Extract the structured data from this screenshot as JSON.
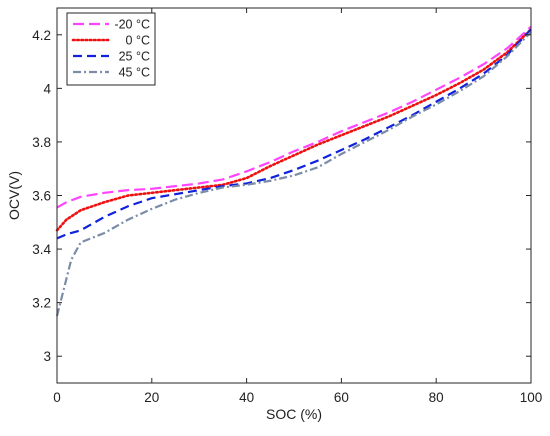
{
  "chart_data": {
    "type": "line",
    "xlabel": "SOC (%)",
    "ylabel": "OCV(V)",
    "xlim": [
      0,
      100
    ],
    "ylim": [
      2.9,
      4.3
    ],
    "xticks": [
      0,
      20,
      40,
      60,
      80,
      100
    ],
    "yticks": [
      3,
      3.2,
      3.4,
      3.6,
      3.8,
      4,
      4.2
    ],
    "xtick_labels": [
      "0",
      "20",
      "40",
      "60",
      "80",
      "100"
    ],
    "ytick_labels": [
      "3",
      "3.2",
      "3.4",
      "3.6",
      "3.8",
      "4",
      "4.2"
    ],
    "grid": false,
    "legend_position": "top-left",
    "series": [
      {
        "name": "-20 °C",
        "color": "#ff44ff",
        "dash": "long-dash",
        "x": [
          0,
          2,
          5,
          10,
          15,
          20,
          25,
          30,
          35,
          40,
          45,
          50,
          55,
          60,
          65,
          70,
          75,
          80,
          85,
          90,
          95,
          100
        ],
        "y": [
          3.555,
          3.575,
          3.595,
          3.61,
          3.62,
          3.625,
          3.635,
          3.645,
          3.66,
          3.69,
          3.725,
          3.765,
          3.8,
          3.84,
          3.875,
          3.91,
          3.95,
          3.995,
          4.04,
          4.09,
          4.15,
          4.23
        ]
      },
      {
        "name": "0 °C",
        "color": "#ee1111",
        "dash": "dotted",
        "x": [
          0,
          2,
          5,
          10,
          15,
          20,
          25,
          30,
          35,
          40,
          45,
          50,
          55,
          60,
          65,
          70,
          75,
          80,
          85,
          90,
          95,
          100
        ],
        "y": [
          3.47,
          3.51,
          3.545,
          3.575,
          3.6,
          3.61,
          3.62,
          3.63,
          3.64,
          3.665,
          3.71,
          3.75,
          3.79,
          3.825,
          3.86,
          3.895,
          3.935,
          3.975,
          4.02,
          4.07,
          4.135,
          4.22
        ]
      },
      {
        "name": "25 °C",
        "color": "#1122dd",
        "dash": "dashed",
        "x": [
          0,
          2,
          5,
          10,
          15,
          20,
          25,
          30,
          35,
          40,
          45,
          50,
          55,
          60,
          65,
          70,
          75,
          80,
          85,
          90,
          95,
          100
        ],
        "y": [
          3.44,
          3.455,
          3.47,
          3.52,
          3.56,
          3.59,
          3.605,
          3.62,
          3.635,
          3.645,
          3.665,
          3.695,
          3.73,
          3.77,
          3.81,
          3.855,
          3.9,
          3.95,
          4.0,
          4.055,
          4.125,
          4.22
        ]
      },
      {
        "name": "45 °C",
        "color": "#7b8ca8",
        "dash": "dash-dot",
        "x": [
          0,
          1,
          3,
          5,
          10,
          15,
          20,
          25,
          30,
          35,
          40,
          45,
          50,
          55,
          60,
          65,
          70,
          75,
          80,
          85,
          90,
          95,
          100
        ],
        "y": [
          3.15,
          3.22,
          3.36,
          3.425,
          3.46,
          3.51,
          3.55,
          3.585,
          3.61,
          3.63,
          3.64,
          3.655,
          3.675,
          3.705,
          3.755,
          3.8,
          3.845,
          3.895,
          3.94,
          3.99,
          4.045,
          4.12,
          4.21
        ]
      }
    ]
  }
}
